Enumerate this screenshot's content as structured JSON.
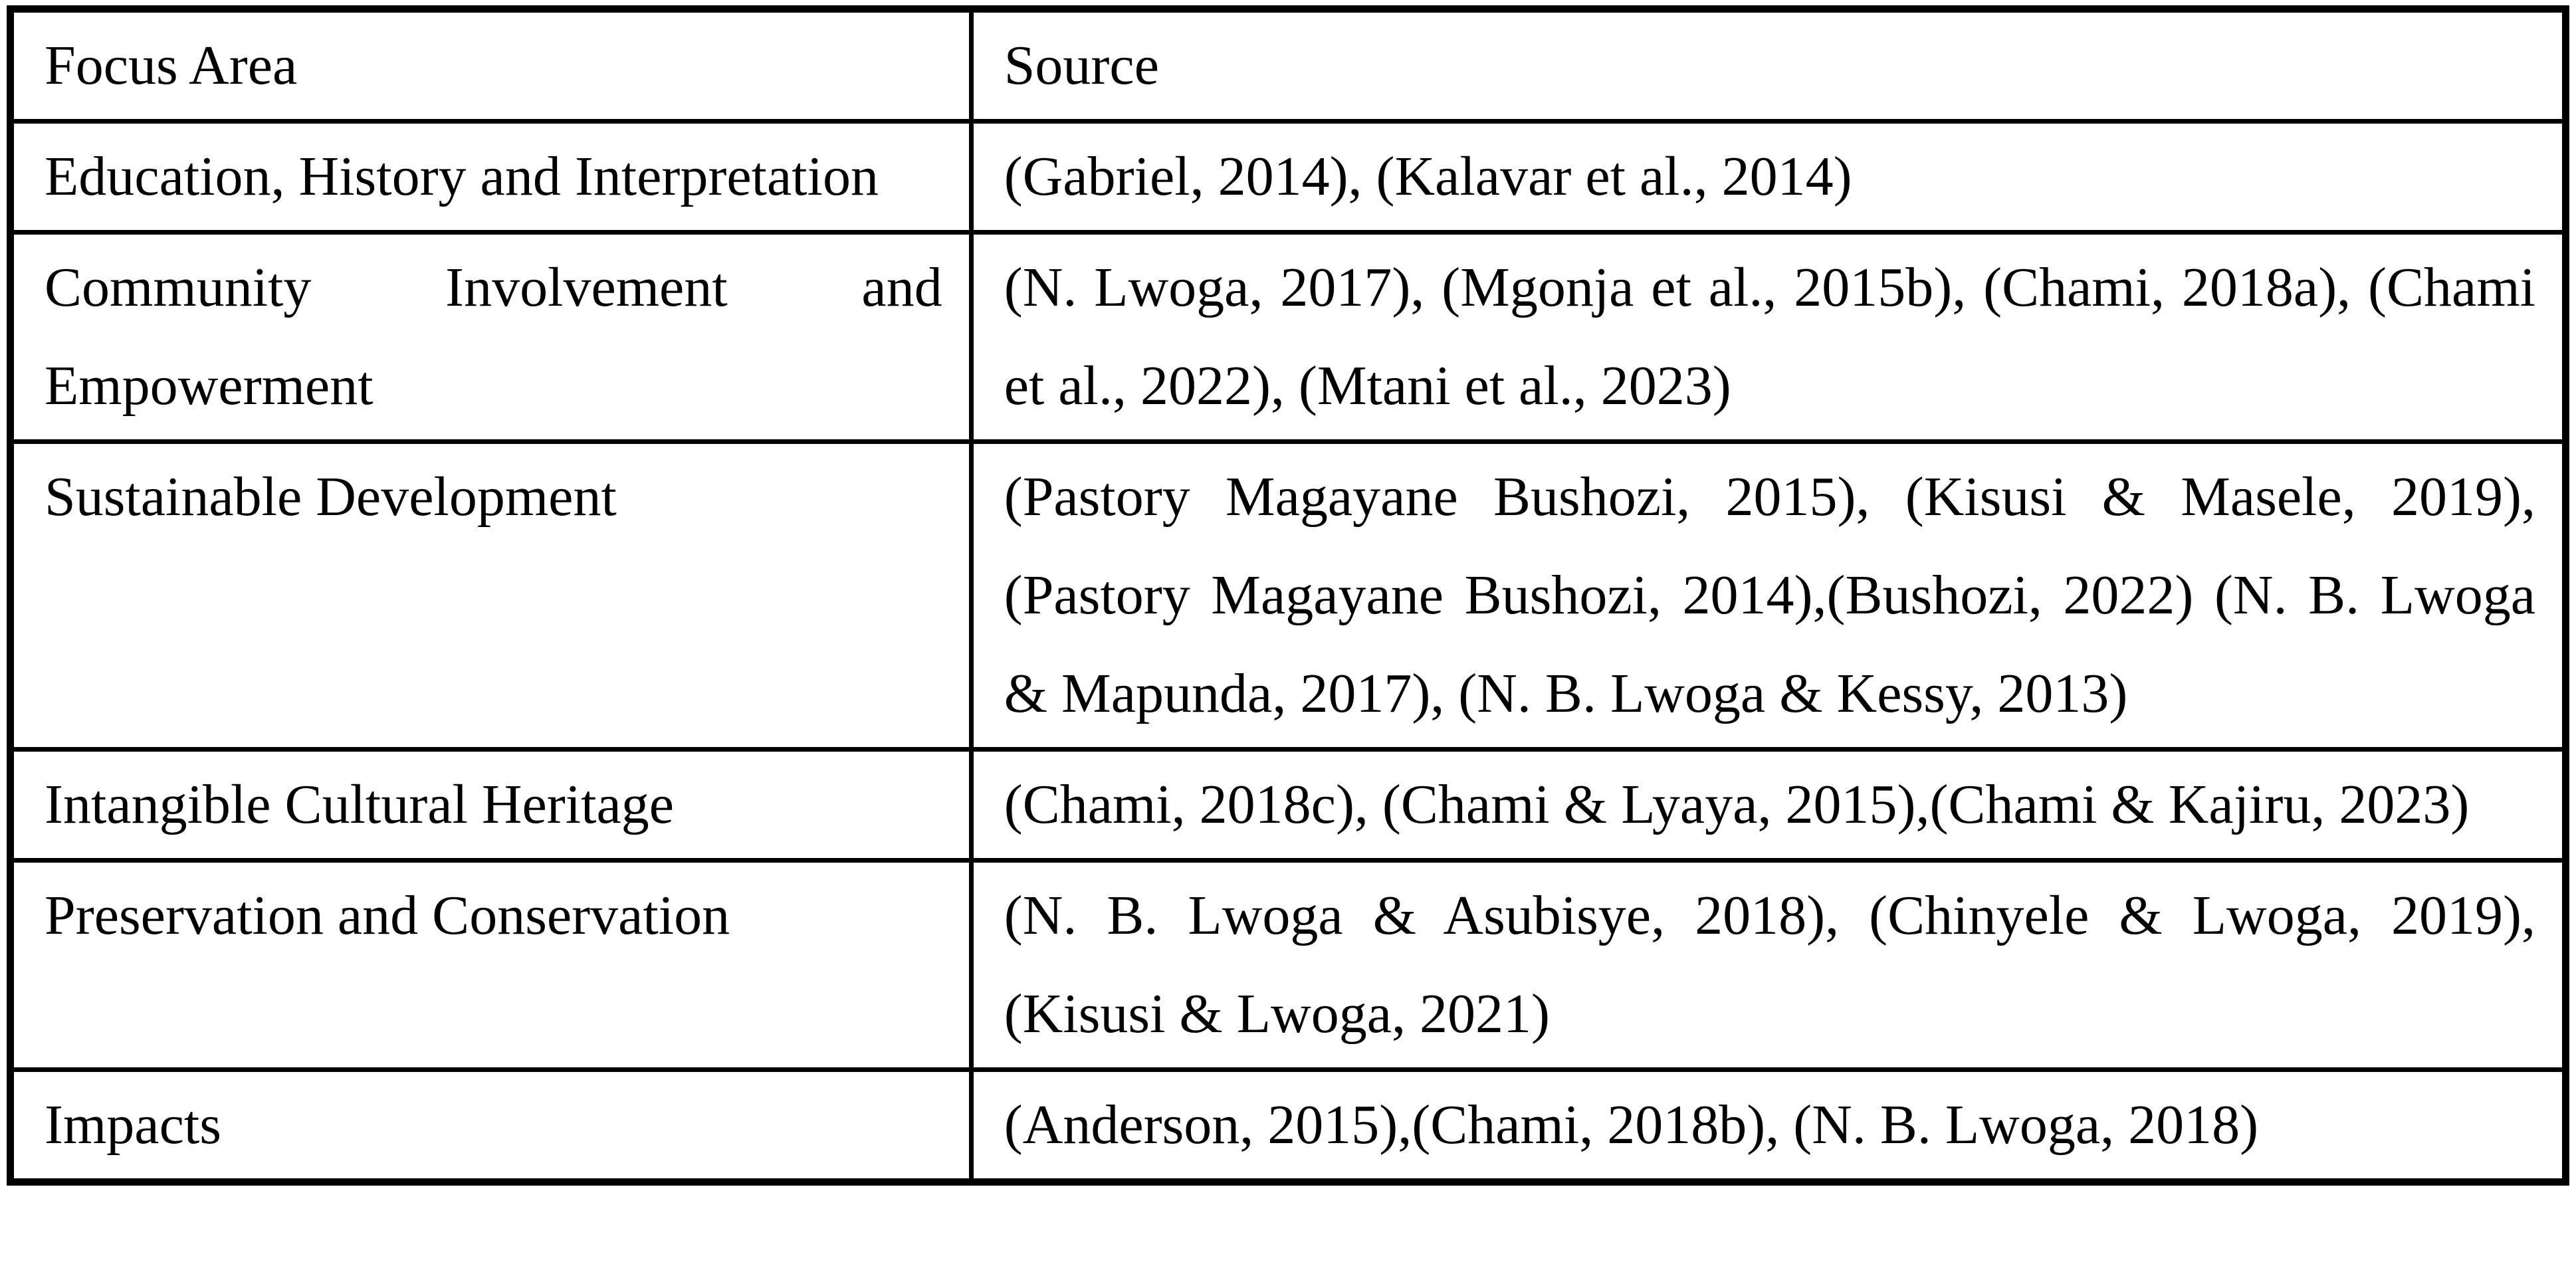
{
  "table": {
    "headers": [
      "Focus Area",
      "Source"
    ],
    "rows": [
      {
        "focus_area": "Education, History and Interpretation",
        "source": "(Gabriel, 2014), (Kalavar et al., 2014)"
      },
      {
        "focus_area": "Community Involvement and Empowerment",
        "source": "(N. Lwoga, 2017), (Mgonja et al., 2015b), (Chami, 2018a), (Chami et al., 2022), (Mtani et al., 2023)"
      },
      {
        "focus_area": "Sustainable Development",
        "source": "(Pastory Magayane Bushozi, 2015), (Kisusi & Masele, 2019), (Pastory Magayane Bushozi, 2014),(Bushozi, 2022) (N. B. Lwoga & Mapunda, 2017), (N. B. Lwoga & Kessy, 2013)"
      },
      {
        "focus_area": "Intangible Cultural Heritage",
        "source": "(Chami, 2018c), (Chami & Lyaya, 2015),(Chami & Kajiru, 2023)"
      },
      {
        "focus_area": "Preservation and Conservation",
        "source": "(N. B. Lwoga & Asubisye, 2018), (Chinyele & Lwoga, 2019), (Kisusi & Lwoga, 2021)"
      },
      {
        "focus_area": "Impacts",
        "source": "(Anderson, 2015),(Chami, 2018b), (N. B. Lwoga, 2018)"
      }
    ]
  }
}
